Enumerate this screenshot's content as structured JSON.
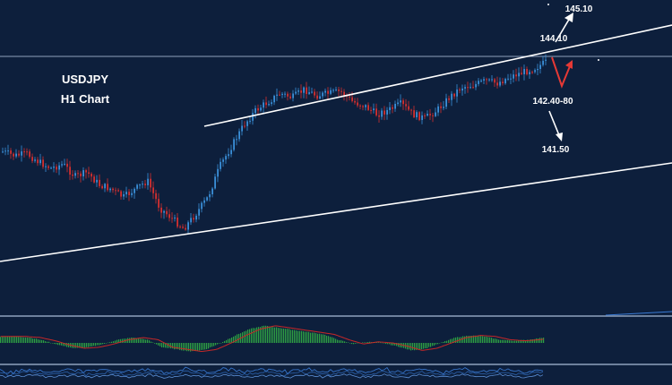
{
  "header": {
    "symbol": "USDJPY",
    "timeframe": "H1 Chart"
  },
  "annotations": {
    "target_up": "145.10",
    "resistance": "144.10",
    "support_zone": "142.40-80",
    "target_down": "141.50"
  },
  "colors": {
    "background": "#0d1f3c",
    "bull_candle": "#3a8fd8",
    "bear_candle": "#d32f2f",
    "trendline": "#ffffff",
    "projection_arrow": "#e53935",
    "histogram": "#2ea043",
    "signal_line": "#c62828",
    "separator": "#8fa2bd",
    "oscillator": "#3a7bd5"
  },
  "chart_data": {
    "type": "candlestick",
    "instrument": "USDJPY",
    "timeframe": "H1",
    "price_levels": [
      {
        "label": "145.10",
        "role": "upside target"
      },
      {
        "label": "144.10",
        "role": "resistance"
      },
      {
        "label": "142.40-80",
        "role": "support zone"
      },
      {
        "label": "141.50",
        "role": "downside target"
      }
    ],
    "price_path": [
      0.52,
      0.5,
      0.51,
      0.47,
      0.44,
      0.46,
      0.4,
      0.42,
      0.36,
      0.34,
      0.3,
      0.34,
      0.38,
      0.25,
      0.2,
      0.15,
      0.22,
      0.3,
      0.45,
      0.55,
      0.65,
      0.72,
      0.76,
      0.8,
      0.78,
      0.82,
      0.79,
      0.8,
      0.81,
      0.76,
      0.74,
      0.7,
      0.72,
      0.75,
      0.7,
      0.68,
      0.72,
      0.78,
      0.83,
      0.84,
      0.86,
      0.85,
      0.88,
      0.9,
      0.92,
      0.95
    ],
    "macd_histogram": [
      0.06,
      0.06,
      0.05,
      0.02,
      -0.02,
      -0.05,
      -0.04,
      -0.01,
      0.03,
      0.05,
      0.03,
      -0.04,
      -0.06,
      -0.08,
      -0.06,
      0.0,
      0.07,
      0.13,
      0.16,
      0.14,
      0.12,
      0.1,
      0.08,
      0.03,
      -0.01,
      0.01,
      0.0,
      -0.03,
      -0.07,
      -0.05,
      0.0,
      0.05,
      0.07,
      0.06,
      0.03,
      0.02,
      0.03,
      0.05
    ],
    "indicators": [
      "MACD",
      "oscillator"
    ]
  }
}
